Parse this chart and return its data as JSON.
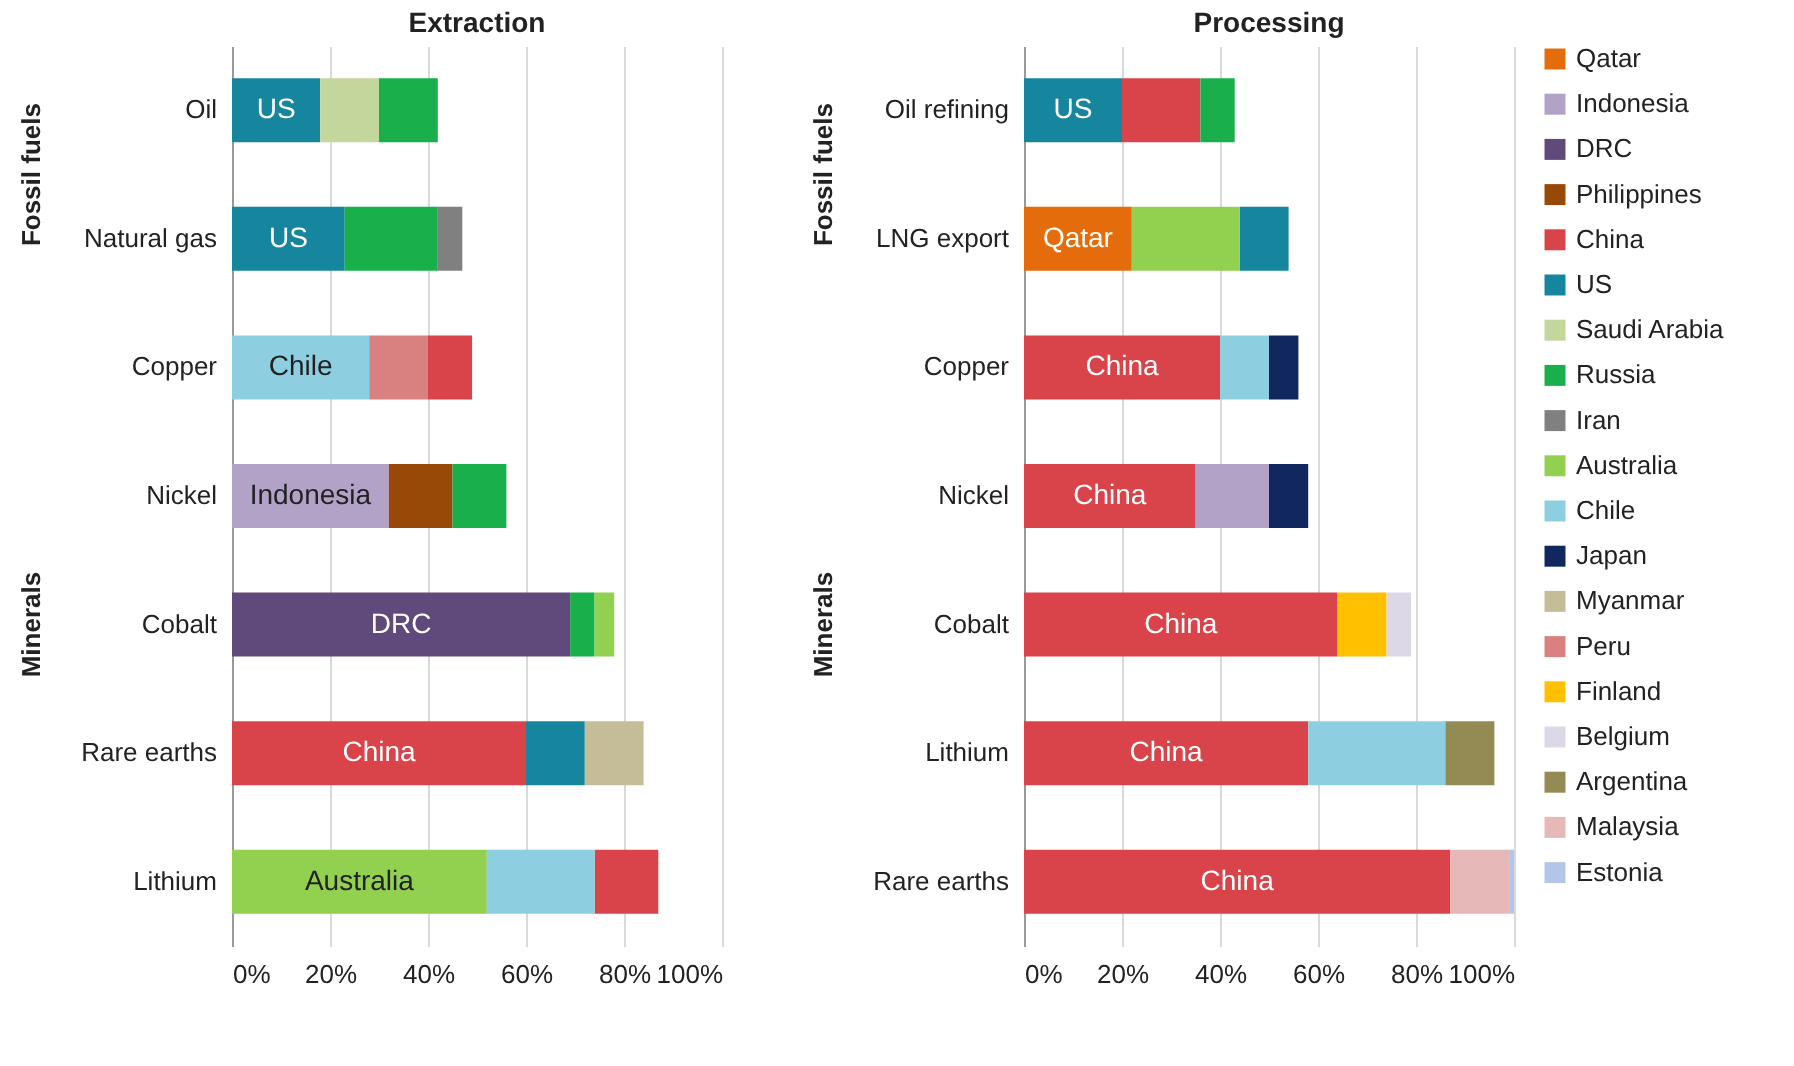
{
  "chart_data": [
    {
      "type": "bar",
      "title": "Extraction",
      "orientation": "horizontal",
      "stacked": true,
      "categories": [
        "Oil",
        "Natural gas",
        "Copper",
        "Nickel",
        "Cobalt",
        "Rare earths",
        "Lithium"
      ],
      "series": [
        {
          "color": "#b3a2c7",
          "values": [
            null,
            null,
            null,
            32,
            null,
            null,
            null
          ]
        },
        {
          "color": "#604a7b",
          "values": [
            null,
            null,
            null,
            null,
            69,
            null,
            null
          ]
        },
        {
          "color": "#984807",
          "values": [
            null,
            null,
            null,
            13,
            null,
            null,
            null
          ]
        },
        {
          "color": "#d9444b",
          "values": [
            null,
            null,
            9,
            null,
            null,
            60,
            13
          ]
        },
        {
          "color": "#16869e",
          "values": [
            18,
            23,
            null,
            null,
            null,
            12,
            null
          ]
        },
        {
          "color": "#c3d69b",
          "values": [
            12,
            null,
            null,
            null,
            null,
            null,
            null
          ]
        },
        {
          "color": "#19b04b",
          "values": [
            12,
            19,
            null,
            11,
            5,
            null,
            null
          ]
        },
        {
          "color": "#808080",
          "values": [
            null,
            5,
            null,
            null,
            null,
            null,
            null
          ]
        },
        {
          "color": "#92d050",
          "values": [
            null,
            null,
            null,
            null,
            4,
            null,
            52
          ]
        },
        {
          "color": "#8dcfe0",
          "values": [
            null,
            null,
            28,
            null,
            null,
            null,
            22
          ]
        },
        {
          "color": "#c4bd97",
          "values": [
            null,
            null,
            null,
            null,
            null,
            12,
            null
          ]
        },
        {
          "color": "#d98080",
          "values": [
            null,
            null,
            12,
            null,
            null,
            null,
            null
          ]
        }
      ],
      "xlim": [
        0,
        100
      ],
      "xticks": [
        {
          "value": 0,
          "label": "0%"
        },
        {
          "value": 20,
          "label": "20%"
        },
        {
          "value": 40,
          "label": "40%"
        },
        {
          "value": 60,
          "label": "60%"
        },
        {
          "value": 80,
          "label": "80%"
        },
        {
          "value": 100,
          "label": "100%"
        }
      ],
      "grid": "x",
      "annotations": [
        "Fossil fuels",
        "Minerals",
        "US",
        "US",
        "Chile",
        "Indonesia",
        "DRC",
        "China",
        "Australia"
      ]
    },
    {
      "type": "bar",
      "title": "Processing",
      "orientation": "horizontal",
      "stacked": true,
      "categories": [
        "Oil refining",
        "LNG export",
        "Copper",
        "Nickel",
        "Cobalt",
        "Lithium",
        "Rare earths"
      ],
      "series": [
        {
          "name": "Qatar",
          "color": "#e46c0a",
          "values": [
            null,
            22,
            null,
            null,
            null,
            null,
            null
          ]
        },
        {
          "name": "Indonesia",
          "color": "#b3a2c7",
          "values": [
            null,
            null,
            null,
            15,
            null,
            null,
            null
          ]
        },
        {
          "name": "DRC",
          "color": "#604a7b",
          "values": [
            null,
            null,
            null,
            null,
            null,
            null,
            null
          ]
        },
        {
          "name": "Philippines",
          "color": "#984807",
          "values": [
            null,
            null,
            null,
            null,
            null,
            null,
            null
          ]
        },
        {
          "name": "China",
          "color": "#d9444b",
          "values": [
            16,
            null,
            40,
            35,
            64,
            58,
            87
          ]
        },
        {
          "name": "US",
          "color": "#16869e",
          "values": [
            20,
            10,
            null,
            null,
            null,
            null,
            null
          ]
        },
        {
          "name": "Saudi Arabia",
          "color": "#c3d69b",
          "values": [
            null,
            null,
            null,
            null,
            null,
            null,
            null
          ]
        },
        {
          "name": "Russia",
          "color": "#19b04b",
          "values": [
            7,
            null,
            null,
            null,
            null,
            null,
            null
          ]
        },
        {
          "name": "Iran",
          "color": "#808080",
          "values": [
            null,
            null,
            null,
            null,
            null,
            null,
            null
          ]
        },
        {
          "name": "Australia",
          "color": "#92d050",
          "values": [
            null,
            22,
            null,
            null,
            null,
            null,
            null
          ]
        },
        {
          "name": "Chile",
          "color": "#8dcfe0",
          "values": [
            null,
            null,
            10,
            null,
            null,
            28,
            null
          ]
        },
        {
          "name": "Japan",
          "color": "#10285e",
          "values": [
            null,
            null,
            6,
            8,
            null,
            null,
            null
          ]
        },
        {
          "name": "Myanmar",
          "color": "#c4bd97",
          "values": [
            null,
            null,
            null,
            null,
            null,
            null,
            null
          ]
        },
        {
          "name": "Peru",
          "color": "#d98080",
          "values": [
            null,
            null,
            null,
            null,
            null,
            null,
            null
          ]
        },
        {
          "name": "Finland",
          "color": "#ffc000",
          "values": [
            null,
            null,
            null,
            null,
            10,
            null,
            null
          ]
        },
        {
          "name": "Belgium",
          "color": "#dcd8e8",
          "values": [
            null,
            null,
            null,
            null,
            5,
            null,
            null
          ]
        },
        {
          "name": "Argentina",
          "color": "#948a54",
          "values": [
            null,
            null,
            null,
            null,
            null,
            10,
            null
          ]
        },
        {
          "name": "Malaysia",
          "color": "#e6b9b8",
          "values": [
            null,
            null,
            null,
            null,
            null,
            null,
            12
          ]
        },
        {
          "name": "Estonia",
          "color": "#b4c6e7",
          "values": [
            null,
            null,
            null,
            null,
            null,
            null,
            1
          ]
        }
      ],
      "xlim": [
        0,
        100
      ],
      "xticks": [
        {
          "value": 0,
          "label": "0%"
        },
        {
          "value": 20,
          "label": "20%"
        },
        {
          "value": 40,
          "label": "40%"
        },
        {
          "value": 60,
          "label": "60%"
        },
        {
          "value": 80,
          "label": "80%"
        },
        {
          "value": 100,
          "label": "100%"
        }
      ],
      "grid": "x",
      "legend": "right",
      "annotations": [
        "Fossil fuels",
        "Minerals",
        "US",
        "Qatar",
        "China",
        "China",
        "China",
        "China",
        "China"
      ]
    }
  ]
}
